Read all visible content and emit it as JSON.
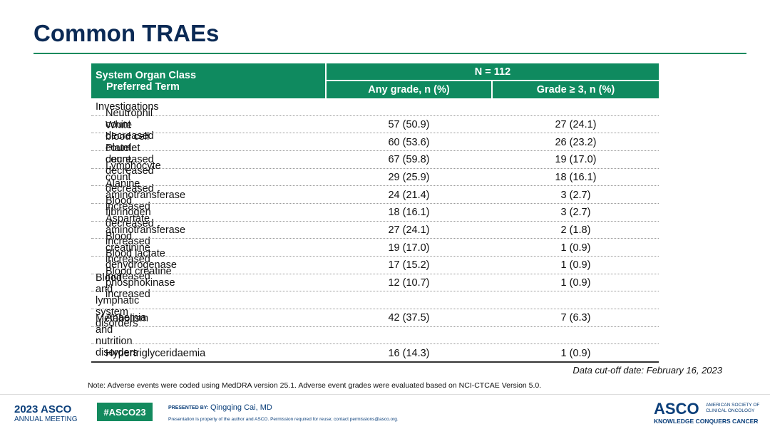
{
  "title": "Common TRAEs",
  "table": {
    "header": {
      "class": "System Organ Class",
      "term": "Preferred Term",
      "n": "N = 112",
      "any": "Any grade, n (%)",
      "g3": "Grade ≥ 3, n (%)"
    },
    "groups": [
      {
        "name": "Investigations",
        "rows": [
          [
            "Neutrophil count decreased",
            "57 (50.9)",
            "27 (24.1)"
          ],
          [
            "White blood cell count decreased",
            "60 (53.6)",
            "26 (23.2)"
          ],
          [
            "Platelet count decreased",
            "67 (59.8)",
            "19 (17.0)"
          ],
          [
            "Lymphocyte count decreased",
            "29 (25.9)",
            "18 (16.1)"
          ],
          [
            "Alanine aminotransferase increased",
            "24 (21.4)",
            "3 (2.7)"
          ],
          [
            "Blood fibrinogen decreased",
            "18 (16.1)",
            "3 (2.7)"
          ],
          [
            "Aspartate aminotransferase increased",
            "27 (24.1)",
            "2 (1.8)"
          ],
          [
            "Blood creatinine increased",
            "19 (17.0)",
            "1 (0.9)"
          ],
          [
            "Blood lactate dehydrogenase increased",
            "17 (15.2)",
            "1 (0.9)"
          ],
          [
            "Blood creatine phosphokinase increased",
            "12 (10.7)",
            "1 (0.9)"
          ]
        ]
      },
      {
        "name": "Blood and lymphatic system disorders",
        "rows": [
          [
            "Anaemia",
            "42 (37.5)",
            "7 (6.3)"
          ]
        ]
      },
      {
        "name": "Metabolism and nutrition disorders",
        "rows": [
          [
            "Hypertriglyceridaemia",
            "16 (14.3)",
            "1 (0.9)"
          ]
        ]
      }
    ]
  },
  "cutoff": "Data cut-off date: February 16, 2023",
  "note": "Note: Adverse events were coded using MedDRA version 25.1. Adverse event grades were evaluated based on NCI-CTCAE Version 5.0.",
  "footer": {
    "meeting_year": "2023 ASCO",
    "meeting": "ANNUAL MEETING",
    "hashtag": "#ASCO23",
    "presented_by": "PRESENTED BY:",
    "presenter": "Qingqing Cai, MD",
    "disclaimer": "Presentation is property of the author and ASCO. Permission required for reuse; contact permissions@asco.org.",
    "logo": "ASCO",
    "society": "AMERICAN SOCIETY OF CLINICAL ONCOLOGY",
    "tagline": "KNOWLEDGE CONQUERS CANCER"
  }
}
